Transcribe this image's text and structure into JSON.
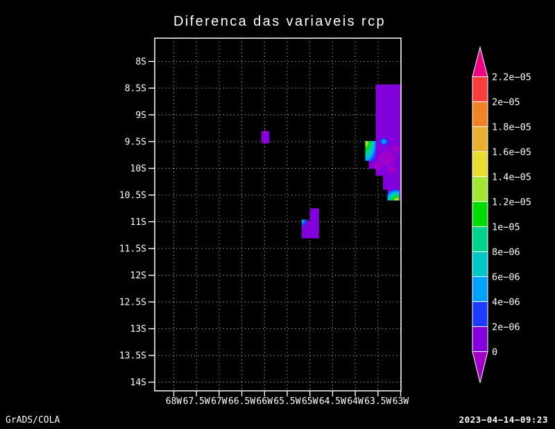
{
  "title": "Diferenca das variaveis rcp",
  "footer": {
    "left": "GrADS/COLA",
    "right": "2023−04−14−09:23"
  },
  "colors": {
    "background": "#000000",
    "foreground": "#ffffff",
    "grid_dots": "#d8d8d8",
    "frame": "#ffffff"
  },
  "chart_data": {
    "type": "heatmap",
    "title": "Diferenca das variaveis rcp",
    "grid": "dotted",
    "x_axis": {
      "ticks": [
        "68W",
        "67.5W",
        "67W",
        "66.5W",
        "66W",
        "65.5W",
        "65W",
        "64.5W",
        "64W",
        "63.5W",
        "63W"
      ],
      "range_deg_west": [
        68,
        63
      ],
      "step_deg": 0.5
    },
    "y_axis": {
      "ticks": [
        "8S",
        "8.5S",
        "9S",
        "9.5S",
        "10S",
        "10.5S",
        "11S",
        "11.5S",
        "12S",
        "12.5S",
        "13S",
        "13.5S",
        "14S"
      ],
      "range_deg_south": [
        8,
        14
      ],
      "step_deg": 0.5
    },
    "colorbar": {
      "position": "right",
      "labels": [
        "2.2e−05",
        "2e−05",
        "1.8e−05",
        "1.6e−05",
        "1.4e−05",
        "1.2e−05",
        "1e−05",
        "8e−06",
        "6e−06",
        "4e−06",
        "2e−06",
        "0"
      ],
      "above_color": "#F00082",
      "below_color": "#A000C8",
      "segment_colors_top_to_bottom": [
        "#FA3C3C",
        "#F08228",
        "#E6AF2D",
        "#E6DC32",
        "#A0E632",
        "#00DC00",
        "#00D28C",
        "#00C8C8",
        "#00A0FF",
        "#1E3CFF",
        "#8200DC"
      ]
    },
    "regions": [
      {
        "id": "main-shaded-region",
        "kind": "polygon",
        "fill": "#8200DC",
        "points": [
          [
            63.55,
            8.43
          ],
          [
            63.0,
            8.43
          ],
          [
            63.0,
            10.6
          ],
          [
            63.29,
            10.6
          ],
          [
            63.29,
            10.4
          ],
          [
            63.39,
            10.4
          ],
          [
            63.39,
            10.14
          ],
          [
            63.55,
            10.14
          ],
          [
            63.55,
            10.01
          ],
          [
            63.7,
            10.01
          ],
          [
            63.7,
            9.82
          ],
          [
            63.78,
            9.82
          ],
          [
            63.78,
            9.49
          ],
          [
            63.55,
            9.49
          ]
        ]
      },
      {
        "id": "gradient-pocket-west",
        "kind": "gradient-rect",
        "lon": [
          63.78,
          63.55
        ],
        "lat": [
          9.49,
          9.86
        ],
        "center": [
          0,
          0
        ],
        "radius": 1.35,
        "stops": [
          "#E6DC32",
          "#A0E632",
          "#00DC00",
          "#00D28C",
          "#00C8C8",
          "#00A0FF",
          "#1E3CFF",
          "#8200DC"
        ]
      },
      {
        "id": "gradient-pocket-south",
        "kind": "gradient-rect",
        "lon": [
          63.29,
          63.03
        ],
        "lat": [
          10.4,
          10.6
        ],
        "center": [
          0.78,
          1
        ],
        "radius": 1.15,
        "stops": [
          "#E6DC32",
          "#A0E632",
          "#00DC00",
          "#00D28C",
          "#00C8C8",
          "#00A0FF",
          "#1E3CFF",
          "#8200DC"
        ]
      },
      {
        "id": "negative-diamond-1",
        "kind": "diamond",
        "center": [
          63.3,
          9.81
        ],
        "rx": 0.2,
        "ry": 0.17,
        "fill": "#A000C8"
      },
      {
        "id": "negative-diamond-2",
        "kind": "diamond",
        "center": [
          63.5,
          9.95
        ],
        "rx": 0.12,
        "ry": 0.1,
        "fill": "#A000C8"
      },
      {
        "id": "negative-diamond-3",
        "kind": "diamond",
        "center": [
          63.11,
          9.63
        ],
        "rx": 0.11,
        "ry": 0.09,
        "fill": "#A000C8"
      },
      {
        "id": "negative-diamond-4",
        "kind": "diamond",
        "center": [
          63.2,
          10.03
        ],
        "rx": 0.12,
        "ry": 0.1,
        "fill": "#A000C8"
      },
      {
        "id": "blue-diamond-outer",
        "kind": "diamond",
        "center": [
          63.37,
          9.5
        ],
        "rx": 0.115,
        "ry": 0.085,
        "fill": "#1E3CFF"
      },
      {
        "id": "blue-diamond-inner",
        "kind": "diamond",
        "center": [
          63.37,
          9.5
        ],
        "rx": 0.065,
        "ry": 0.05,
        "fill": "#00A0FF"
      },
      {
        "id": "isolated-cell-66w",
        "kind": "rect",
        "lon": [
          66.07,
          65.89
        ],
        "lat": [
          9.31,
          9.53
        ],
        "fill": "#8200DC"
      },
      {
        "id": "isolated-cell-66w-notch-top",
        "kind": "diamond",
        "center": [
          65.99,
          9.325
        ],
        "rx": 0.05,
        "ry": 0.045,
        "fill": "#A000C8"
      },
      {
        "id": "isolated-cell-66w-notch-bottom",
        "kind": "diamond",
        "center": [
          65.99,
          9.5
        ],
        "rx": 0.05,
        "ry": 0.045,
        "fill": "#A000C8"
      },
      {
        "id": "isolated-cell-65w-upper",
        "kind": "rect",
        "lon": [
          65.0,
          64.8
        ],
        "lat": [
          10.75,
          10.98
        ],
        "fill": "#8200DC"
      },
      {
        "id": "isolated-cell-65w-lower",
        "kind": "rect",
        "lon": [
          65.18,
          64.8
        ],
        "lat": [
          10.98,
          11.31
        ],
        "fill": "#8200DC"
      },
      {
        "id": "isolated-cell-65w-gradient-corner",
        "kind": "gradient-rect",
        "lon": [
          65.18,
          65.06
        ],
        "lat": [
          10.96,
          11.1
        ],
        "center": [
          0,
          0
        ],
        "radius": 1.1,
        "stops": [
          "#00C8C8",
          "#00A0FF",
          "#1E3CFF",
          "#8200DC"
        ]
      }
    ]
  }
}
